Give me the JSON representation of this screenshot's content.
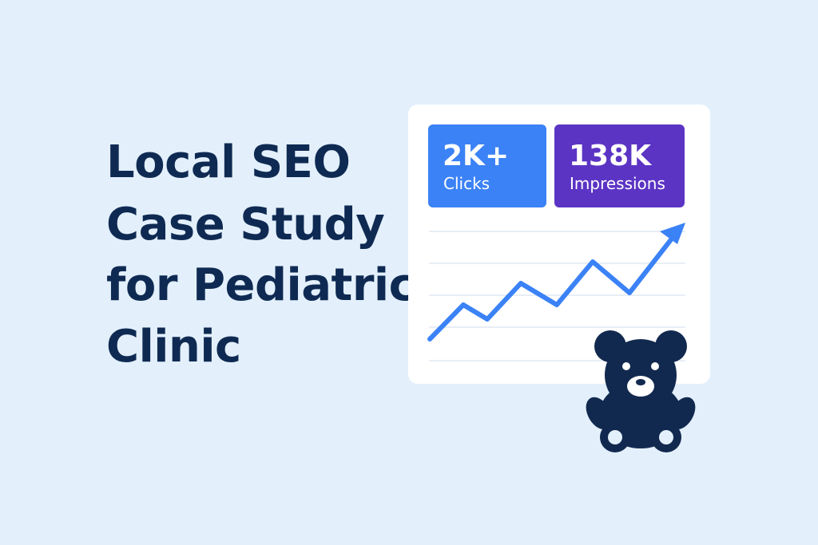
{
  "title": {
    "lines": [
      "Local SEO",
      "Case Study",
      "for Pediatric",
      "Clinic"
    ]
  },
  "stats": [
    {
      "value": "2K+",
      "label": "Clicks"
    },
    {
      "value": "138K",
      "label": "Impressions"
    }
  ]
}
